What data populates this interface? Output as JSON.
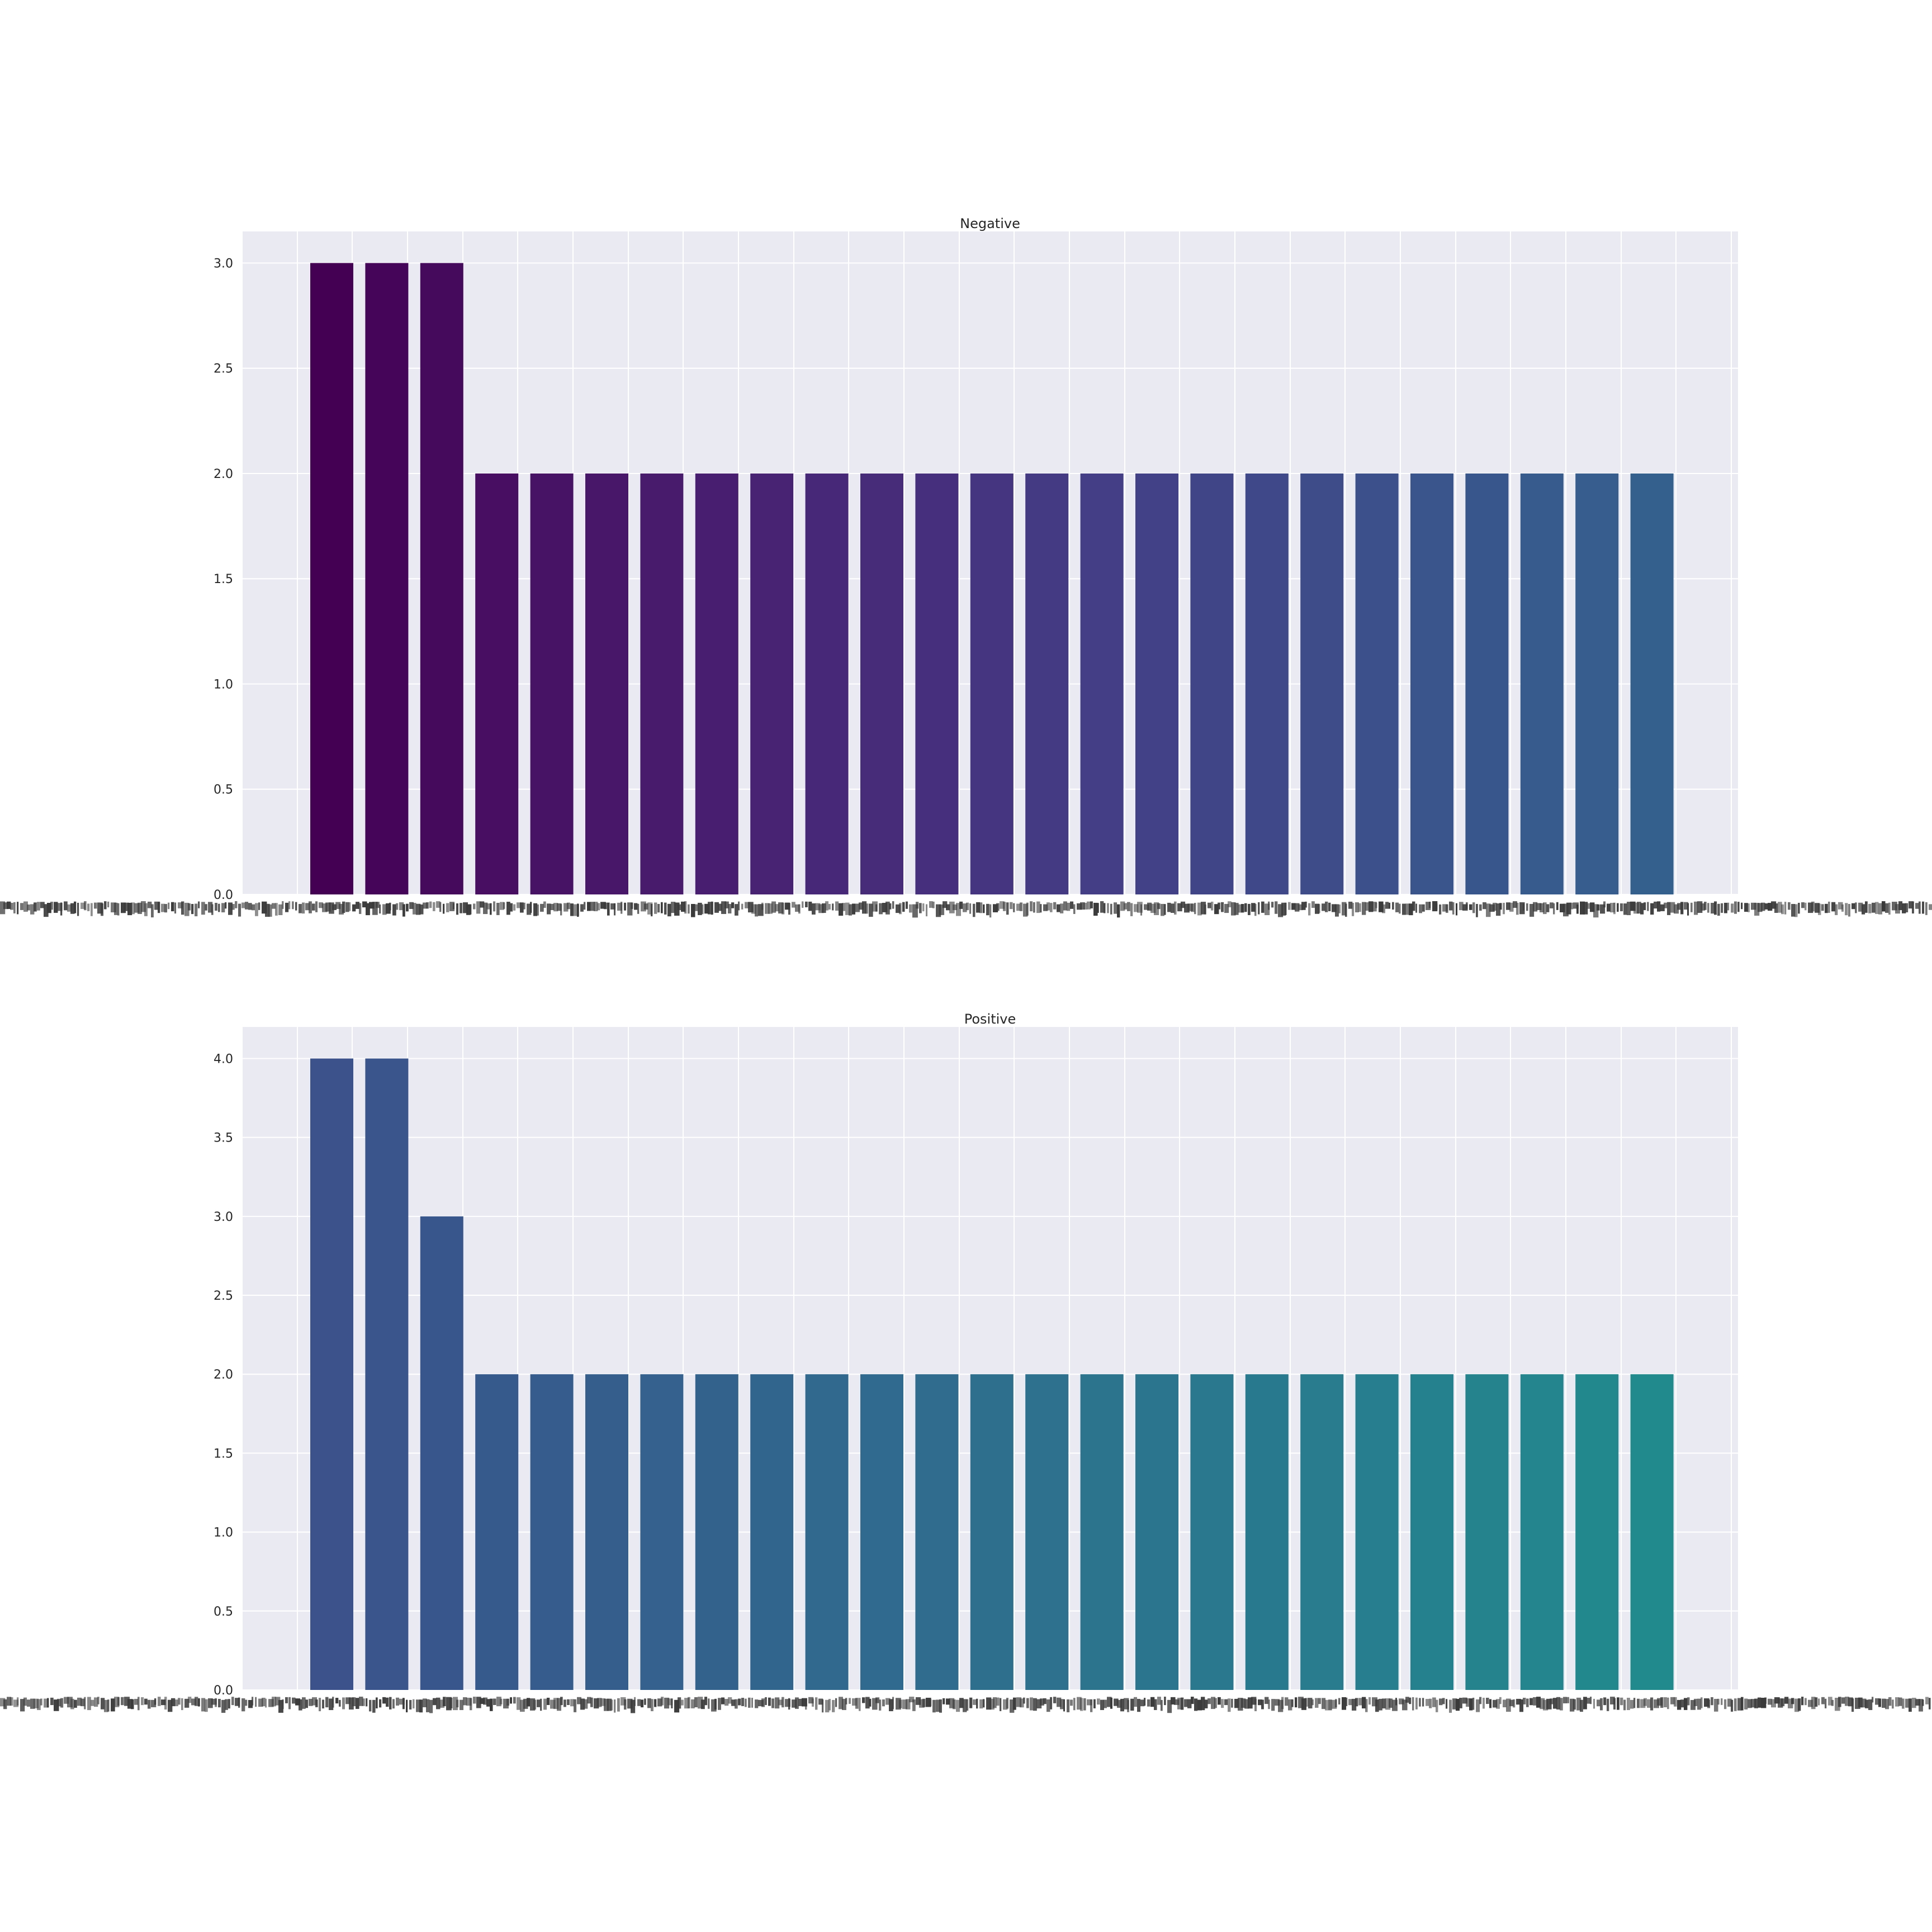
{
  "figure_background": "#ffffff",
  "panel_background": "#eaeaf2",
  "chart_data": [
    {
      "type": "bar",
      "title": "Negative",
      "xlabel": "",
      "ylabel": "",
      "ylim": [
        0,
        3.15
      ],
      "yticks": [
        "0.0",
        "0.5",
        "1.0",
        "1.5",
        "2.0",
        "2.5",
        "3.0"
      ],
      "ytick_values": [
        0,
        0.5,
        1.0,
        1.5,
        2.0,
        2.5,
        3.0
      ],
      "categories_note": "x tick labels are overlapping and illegible",
      "values": [
        3,
        3,
        3,
        2,
        2,
        2,
        2,
        2,
        2,
        2,
        2,
        2,
        2,
        2,
        2,
        2,
        2,
        2,
        2,
        2,
        2,
        2,
        2,
        2,
        2
      ],
      "colors": [
        "#440154",
        "#450559",
        "#460a5d",
        "#470e61",
        "#471365",
        "#481769",
        "#481b6d",
        "#481f70",
        "#482374",
        "#472777",
        "#472c7a",
        "#46307e",
        "#453581",
        "#443983",
        "#433e85",
        "#424086",
        "#404588",
        "#3f4889",
        "#3e4c8a",
        "#3c508b",
        "#3a548c",
        "#39568c",
        "#375b8d",
        "#365d8d",
        "#34608d"
      ]
    },
    {
      "type": "bar",
      "title": "Positive",
      "xlabel": "",
      "ylabel": "",
      "ylim": [
        0,
        4.2
      ],
      "yticks": [
        "0.0",
        "0.5",
        "1.0",
        "1.5",
        "2.0",
        "2.5",
        "3.0",
        "3.5",
        "4.0"
      ],
      "ytick_values": [
        0,
        0.5,
        1.0,
        1.5,
        2.0,
        2.5,
        3.0,
        3.5,
        4.0
      ],
      "categories_note": "x tick labels are overlapping and illegible",
      "values": [
        4,
        4,
        3,
        2,
        2,
        2,
        2,
        2,
        2,
        2,
        2,
        2,
        2,
        2,
        2,
        2,
        2,
        2,
        2,
        2,
        2,
        2,
        2,
        2,
        2
      ],
      "colors": [
        "#3b528b",
        "#3a548c",
        "#39568c",
        "#375a8c",
        "#365c8d",
        "#355e8d",
        "#34618d",
        "#33638d",
        "#32658e",
        "#31688e",
        "#306a8e",
        "#2f6c8e",
        "#2e6f8e",
        "#2d718e",
        "#2c738e",
        "#2b758e",
        "#2a788e",
        "#29798e",
        "#287c8e",
        "#277e8e",
        "#26818e",
        "#25838e",
        "#24858e",
        "#23878e",
        "#218a8d"
      ]
    }
  ]
}
